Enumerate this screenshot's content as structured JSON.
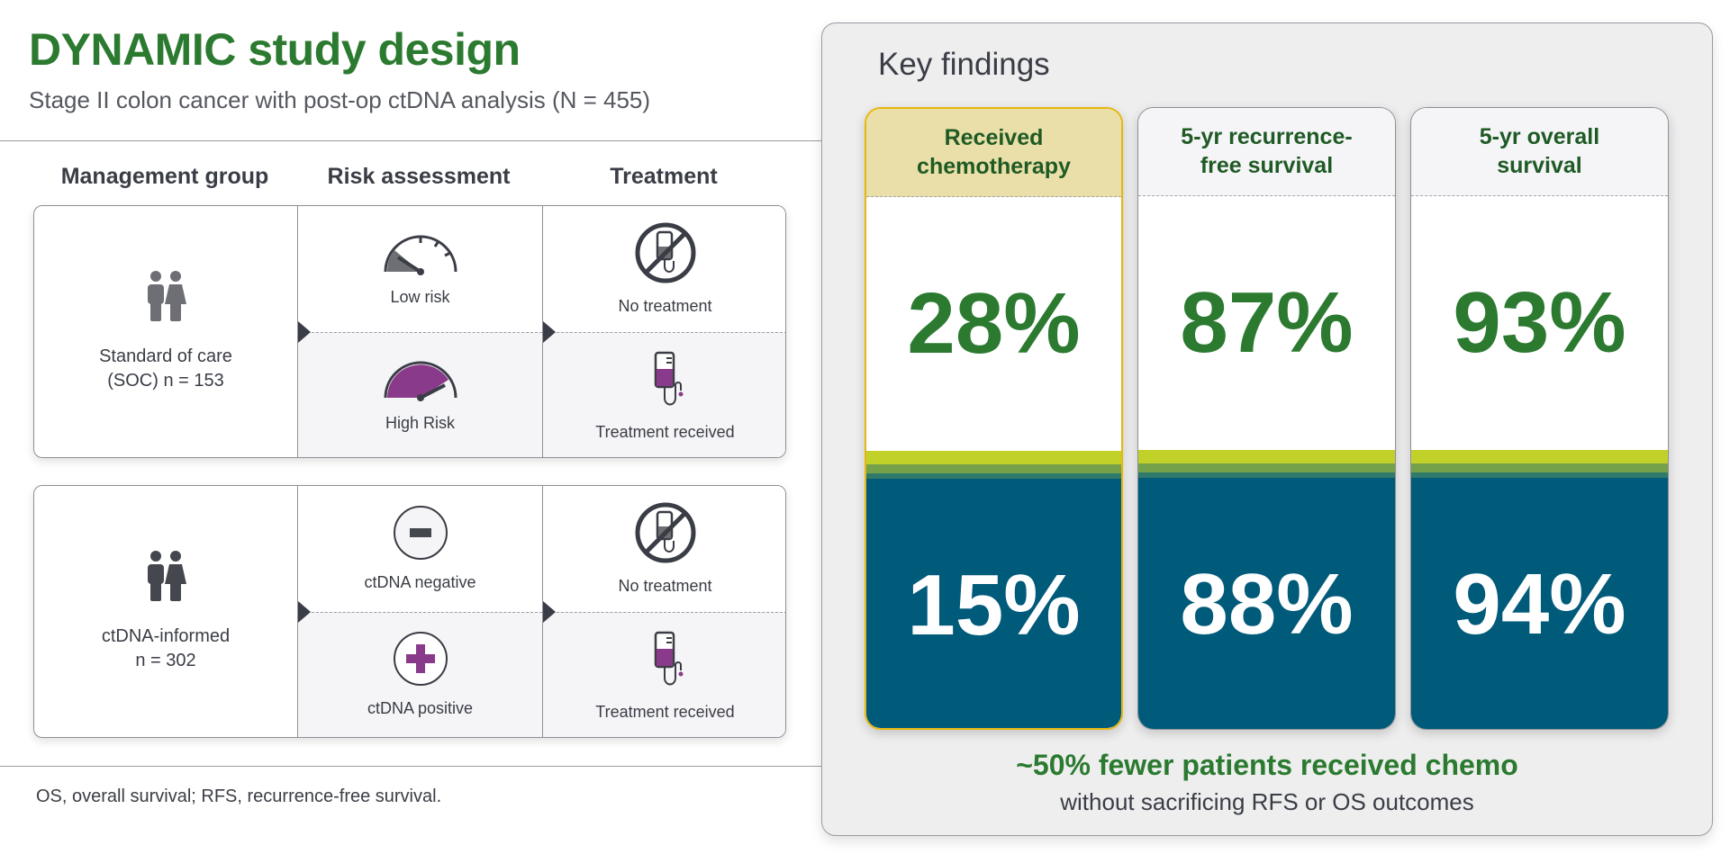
{
  "title": "DYNAMIC study design",
  "subtitle": "Stage II colon cancer with post-op ctDNA analysis (N = 455)",
  "columns": [
    "Management group",
    "Risk assessment",
    "Treatment"
  ],
  "groups": [
    {
      "label_line1": "Standard of care",
      "label_line2": "(SOC) n = 153",
      "icon": "people-icon",
      "risk_top": "Low risk",
      "risk_bottom": "High Risk",
      "treat_top": "No treatment",
      "treat_bottom": "Treatment received"
    },
    {
      "label_line1": "ctDNA-informed",
      "label_line2": "n = 302",
      "icon": "people-icon",
      "risk_top": "ctDNA negative",
      "risk_bottom": "ctDNA positive",
      "treat_top": "No treatment",
      "treat_bottom": "Treatment received"
    }
  ],
  "footnote": "OS, overall survival; RFS, recurrence-free survival.",
  "key_findings": {
    "title": "Key findings",
    "cards": [
      {
        "header_line1": "Received",
        "header_line2": "chemotherapy",
        "soc_value": "28%",
        "ctdna_value": "15%",
        "highlighted": true
      },
      {
        "header_line1": "5-yr recurrence-",
        "header_line2": "free survival",
        "soc_value": "87%",
        "ctdna_value": "88%",
        "highlighted": false
      },
      {
        "header_line1": "5-yr overall",
        "header_line2": "survival",
        "soc_value": "93%",
        "ctdna_value": "94%",
        "highlighted": false
      }
    ],
    "conclusion": "~50% fewer patients received chemo",
    "conclusion_sub": "without sacrificing RFS or OS outcomes"
  },
  "colors": {
    "brand_green": "#2b7a30",
    "ctdna_blue": "#005a7a",
    "highlight_gold": "#e8b70c",
    "risk_purple": "#8a3a8a"
  }
}
